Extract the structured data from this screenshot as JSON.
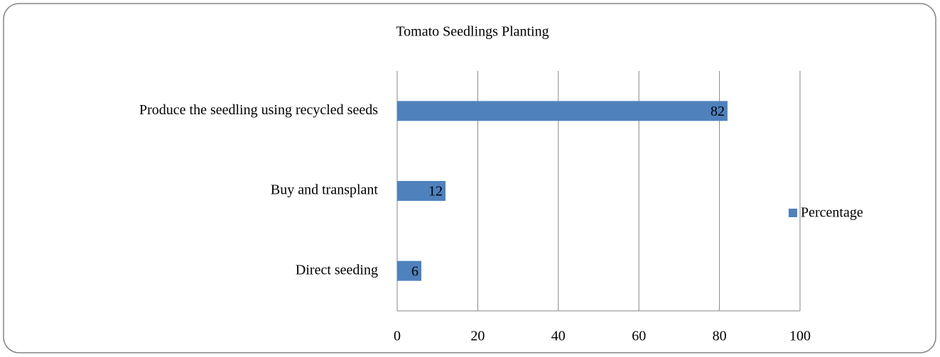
{
  "chart_data": {
    "type": "bar",
    "orientation": "horizontal",
    "title": "Tomato Seedlings Planting",
    "categories": [
      "Produce the seedling using recycled seeds",
      "Buy and transplant",
      "Direct seeding"
    ],
    "series": [
      {
        "name": "Percentage",
        "color": "#4f81bd",
        "values": [
          82,
          12,
          6
        ]
      }
    ],
    "xlim": [
      0,
      100
    ],
    "xticks": [
      0,
      20,
      40,
      60,
      80,
      100
    ],
    "grid": true,
    "legend": "right"
  }
}
